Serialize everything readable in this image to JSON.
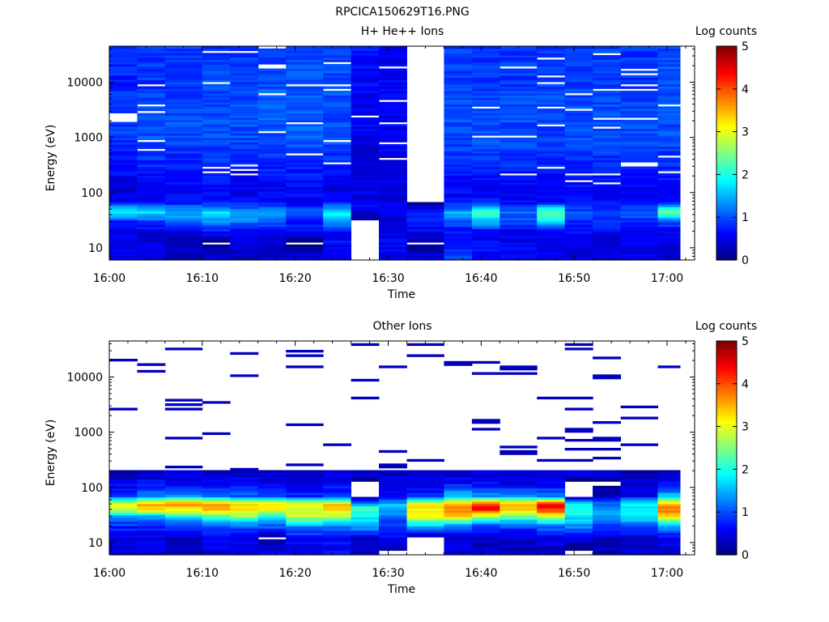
{
  "figure_title": "RPCICA150629T16.PNG",
  "chart_data": [
    {
      "type": "heatmap",
      "title": "H+ He++ Ions",
      "xlabel": "Time",
      "ylabel": "Energy (eV)",
      "x_tick_labels": [
        "16:00",
        "16:10",
        "16:20",
        "16:30",
        "16:40",
        "16:50",
        "17:00"
      ],
      "y_tick_labels": [
        "10",
        "100",
        "1000",
        "10000"
      ],
      "y_scale": "log",
      "ylim": [
        6,
        45000
      ],
      "colorbar": {
        "label": "Log counts",
        "ticks": [
          "0",
          "1",
          "2",
          "3",
          "4",
          "5"
        ],
        "range": [
          0,
          5
        ]
      },
      "time_bins": [
        "16:00",
        "16:03",
        "16:06",
        "16:10",
        "16:13",
        "16:16",
        "16:19",
        "16:23",
        "16:26",
        "16:29",
        "16:32",
        "16:36",
        "16:39",
        "16:42",
        "16:46",
        "16:49",
        "16:52",
        "16:55",
        "16:59"
      ],
      "profile": {
        "note": "log counts per time bin vs energy band",
        "bands_ev": [
          7,
          12,
          20,
          30,
          45,
          70,
          120,
          300,
          1000,
          3000,
          10000,
          30000
        ],
        "columns": [
          [
            0.5,
            0.6,
            0.5,
            0.7,
            2.0,
            0.6,
            0.4,
            0.7,
            0.9,
            0.9,
            0.8,
            0.8
          ],
          [
            0.4,
            0.4,
            0.5,
            0.9,
            1.8,
            0.5,
            0.5,
            0.8,
            1.0,
            0.9,
            0.9,
            0.9
          ],
          [
            0.4,
            0.3,
            0.5,
            1.2,
            1.6,
            0.6,
            0.6,
            0.7,
            1.0,
            1.0,
            0.9,
            0.9
          ],
          [
            0.4,
            0.0,
            0.7,
            1.3,
            1.7,
            0.7,
            0.6,
            0.8,
            1.0,
            1.0,
            1.0,
            0.9
          ],
          [
            0.4,
            0.4,
            0.5,
            1.2,
            1.4,
            0.6,
            0.5,
            0.8,
            1.0,
            1.0,
            0.9,
            0.9
          ],
          [
            0.4,
            0.4,
            0.5,
            1.2,
            1.5,
            0.5,
            0.6,
            0.8,
            1.0,
            1.1,
            1.0,
            0.9
          ],
          [
            0.4,
            0.0,
            0.6,
            0.8,
            1.0,
            0.6,
            0.6,
            0.8,
            1.1,
            1.1,
            1.0,
            1.0
          ],
          [
            0.6,
            0.6,
            0.7,
            1.4,
            1.9,
            0.7,
            0.5,
            0.8,
            1.0,
            1.0,
            1.0,
            1.0
          ],
          [
            0.0,
            0.0,
            0.0,
            0.0,
            0.6,
            0.6,
            0.5,
            0.4,
            0.5,
            0.6,
            0.6,
            0.7
          ],
          [
            0.5,
            0.6,
            0.5,
            0.4,
            0.5,
            0.5,
            0.5,
            0.5,
            0.6,
            0.6,
            0.6,
            0.6
          ],
          [
            0.5,
            0.0,
            0.6,
            0.8,
            0.7,
            0.0,
            0.0,
            0.0,
            0.0,
            0.0,
            0.0,
            0.0
          ],
          [
            0.9,
            0.7,
            0.7,
            1.0,
            1.5,
            0.6,
            0.6,
            0.8,
            1.0,
            1.0,
            0.9,
            0.9
          ],
          [
            0.7,
            0.7,
            0.6,
            1.5,
            2.3,
            0.7,
            0.6,
            0.8,
            1.0,
            1.0,
            0.9,
            0.9
          ],
          [
            0.6,
            0.6,
            0.5,
            1.0,
            1.1,
            0.6,
            0.6,
            0.8,
            1.0,
            1.0,
            0.9,
            0.9
          ],
          [
            0.5,
            0.5,
            0.6,
            1.7,
            2.4,
            0.6,
            0.6,
            0.8,
            0.9,
            1.0,
            0.9,
            0.9
          ],
          [
            0.5,
            0.5,
            0.7,
            0.8,
            1.0,
            0.6,
            0.6,
            0.8,
            1.0,
            1.0,
            0.9,
            0.9
          ],
          [
            0.4,
            0.4,
            0.6,
            0.8,
            1.0,
            0.6,
            0.6,
            0.8,
            1.0,
            1.0,
            0.9,
            0.9
          ],
          [
            0.5,
            0.5,
            0.6,
            0.8,
            1.1,
            0.6,
            0.6,
            0.8,
            1.0,
            1.0,
            0.9,
            0.9
          ],
          [
            0.4,
            0.4,
            0.6,
            1.0,
            2.5,
            0.7,
            0.6,
            0.8,
            1.0,
            1.0,
            1.0,
            1.0
          ]
        ]
      }
    },
    {
      "type": "heatmap",
      "title": "Other Ions",
      "xlabel": "Time",
      "ylabel": "Energy (eV)",
      "x_tick_labels": [
        "16:00",
        "16:10",
        "16:20",
        "16:30",
        "16:40",
        "16:50",
        "17:00"
      ],
      "y_tick_labels": [
        "10",
        "100",
        "1000",
        "10000"
      ],
      "y_scale": "log",
      "ylim": [
        6,
        45000
      ],
      "colorbar": {
        "label": "Log counts",
        "ticks": [
          "0",
          "1",
          "2",
          "3",
          "4",
          "5"
        ],
        "range": [
          0,
          5
        ]
      },
      "time_bins": [
        "16:00",
        "16:03",
        "16:06",
        "16:10",
        "16:13",
        "16:16",
        "16:19",
        "16:23",
        "16:26",
        "16:29",
        "16:32",
        "16:36",
        "16:39",
        "16:42",
        "16:46",
        "16:49",
        "16:52",
        "16:55",
        "16:59"
      ],
      "profile": {
        "note": "log counts per time bin vs energy band; above ~200 eV only sparse single-count lines",
        "bands_ev": [
          7,
          12,
          20,
          30,
          40,
          50,
          70,
          120,
          180
        ],
        "columns": [
          [
            0.4,
            0.6,
            0.8,
            1.2,
            2.8,
            3.2,
            1.0,
            0.5,
            0.3
          ],
          [
            0.4,
            0.5,
            0.8,
            1.5,
            3.4,
            3.6,
            1.3,
            0.6,
            0.4
          ],
          [
            0.4,
            0.4,
            0.9,
            1.9,
            3.2,
            3.8,
            1.4,
            0.6,
            0.4
          ],
          [
            0.5,
            0.6,
            1.0,
            2.2,
            3.5,
            3.7,
            1.2,
            0.6,
            0.4
          ],
          [
            0.5,
            0.6,
            1.0,
            2.6,
            3.3,
            3.5,
            1.1,
            0.6,
            0.4
          ],
          [
            0.5,
            0.0,
            1.1,
            2.0,
            3.0,
            3.4,
            1.1,
            0.6,
            0.4
          ],
          [
            0.5,
            0.6,
            1.3,
            2.8,
            2.9,
            3.3,
            0.8,
            0.5,
            0.3
          ],
          [
            0.6,
            0.6,
            1.1,
            2.9,
            3.2,
            3.4,
            0.9,
            0.6,
            0.4
          ],
          [
            0.3,
            0.3,
            1.5,
            1.9,
            2.2,
            1.5,
            0.0,
            0.0,
            0.3
          ],
          [
            0.0,
            0.5,
            1.0,
            1.1,
            1.4,
            1.6,
            0.6,
            0.5,
            0.3
          ],
          [
            0.0,
            0.0,
            1.6,
            3.0,
            3.1,
            3.2,
            0.8,
            0.5,
            0.4
          ],
          [
            0.5,
            0.5,
            1.1,
            3.4,
            3.6,
            3.7,
            1.6,
            0.6,
            0.4
          ],
          [
            0.3,
            0.3,
            0.9,
            2.8,
            4.3,
            4.2,
            1.3,
            0.6,
            0.4
          ],
          [
            0.3,
            0.4,
            1.0,
            2.4,
            3.4,
            3.6,
            1.5,
            0.5,
            0.4
          ],
          [
            0.3,
            0.5,
            1.2,
            2.9,
            4.2,
            4.3,
            1.2,
            0.6,
            0.4
          ],
          [
            0.0,
            0.5,
            1.3,
            1.8,
            2.1,
            1.9,
            0.0,
            0.0,
            0.4
          ],
          [
            0.3,
            0.3,
            1.0,
            1.5,
            1.4,
            1.2,
            0.3,
            0.0,
            0.3
          ],
          [
            0.4,
            0.4,
            1.1,
            1.8,
            2.0,
            1.8,
            0.6,
            0.4,
            0.3
          ],
          [
            0.5,
            0.5,
            1.4,
            3.5,
            3.8,
            3.6,
            1.6,
            0.6,
            0.4
          ]
        ]
      }
    }
  ]
}
